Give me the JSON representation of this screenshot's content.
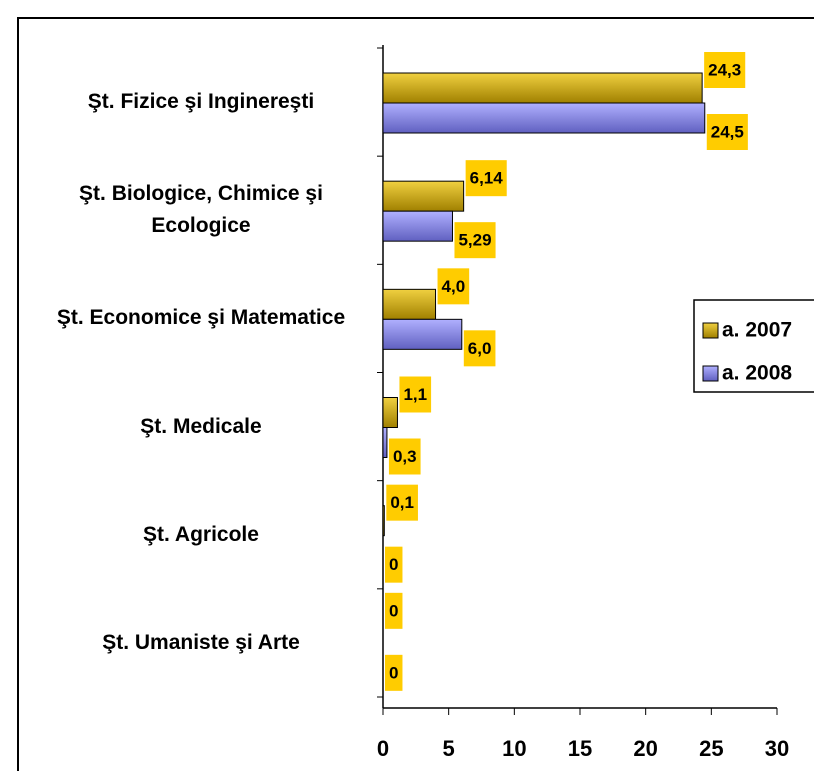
{
  "chart_data": {
    "type": "bar",
    "orientation": "horizontal",
    "categories": [
      "Şt. Fizice şi Inginereşti",
      "Şt. Biologice, Chimice şi Ecologice",
      "Şt. Economice şi Matematice",
      "Şt. Medicale",
      "Şt. Agricole",
      "Şt. Umaniste şi Arte"
    ],
    "series": [
      {
        "name": "a. 2007",
        "color": "#c9a400",
        "values": [
          24.3,
          6.14,
          4.0,
          1.1,
          0.1,
          0
        ],
        "value_labels": [
          "24,3",
          "6,14",
          "4,0",
          "1,1",
          "0,1",
          "0"
        ]
      },
      {
        "name": "a. 2008",
        "color": "#8484e0",
        "values": [
          24.5,
          5.29,
          6.0,
          0.3,
          0,
          0
        ],
        "value_labels": [
          "24,5",
          "5,29",
          "6,0",
          "0,3",
          "0",
          "0"
        ]
      }
    ],
    "xlim": [
      0,
      30
    ],
    "xticks": [
      0,
      5,
      10,
      15,
      20,
      25,
      30
    ],
    "legend": "right"
  }
}
